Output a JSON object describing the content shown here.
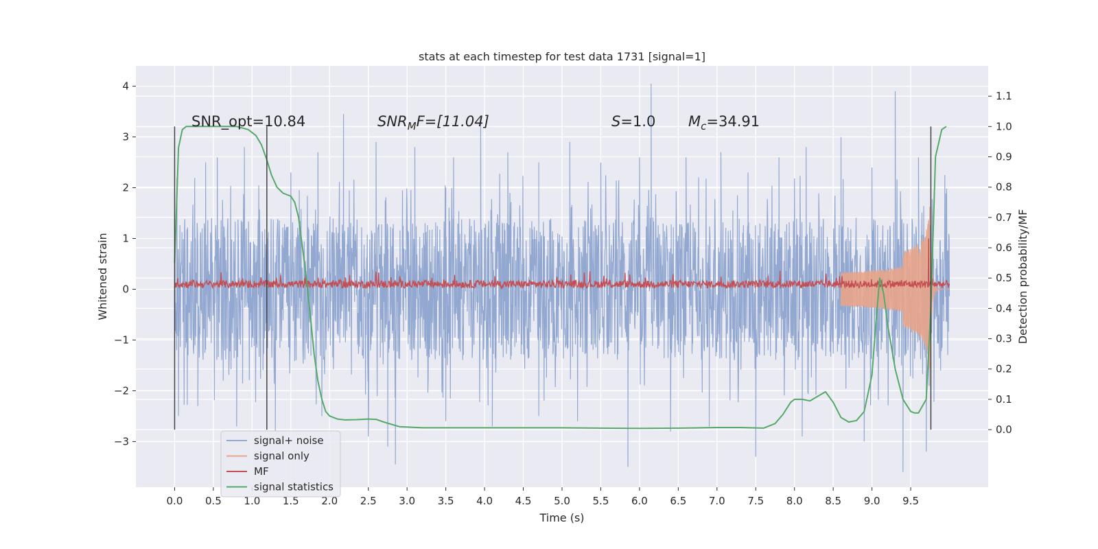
{
  "chart_data": {
    "type": "line",
    "title": "stats at each timestep for test data 1731 [signal=1]",
    "xlabel": "Time (s)",
    "ylabel": "Whitened strain",
    "y2label": "Detection probability/MF",
    "xlim": [
      -0.5,
      10.5
    ],
    "ylim": [
      -3.9,
      4.4
    ],
    "y2lim": [
      -0.19,
      1.2
    ],
    "xticks": [
      0.0,
      0.5,
      1.0,
      1.5,
      2.0,
      2.5,
      3.0,
      3.5,
      4.0,
      4.5,
      5.0,
      5.5,
      6.0,
      6.5,
      7.0,
      7.5,
      8.0,
      8.5,
      9.0,
      9.5
    ],
    "xtick_labels": [
      "0.0",
      "0.5",
      "1.0",
      "1.5",
      "2.0",
      "2.5",
      "3.0",
      "3.5",
      "4.0",
      "4.5",
      "5.0",
      "5.5",
      "6.0",
      "6.5",
      "7.0",
      "7.5",
      "8.0",
      "8.5",
      "9.0",
      "9.5"
    ],
    "yticks": [
      -3,
      -2,
      -1,
      0,
      1,
      2,
      3,
      4
    ],
    "ytick_labels": [
      "−3",
      "−2",
      "−1",
      "0",
      "1",
      "2",
      "3",
      "4"
    ],
    "y2ticks": [
      0.0,
      0.1,
      0.2,
      0.3,
      0.4,
      0.5,
      0.6,
      0.7,
      0.8,
      0.9,
      1.0,
      1.1
    ],
    "y2tick_labels": [
      "0.0",
      "0.1",
      "0.2",
      "0.3",
      "0.4",
      "0.5",
      "0.6",
      "0.7",
      "0.8",
      "0.9",
      "1.0",
      "1.1"
    ],
    "grid": true,
    "legend_position": "lower-left",
    "legend": [
      {
        "label": "signal+ noise",
        "color": "#92a8d1"
      },
      {
        "label": "signal only",
        "color": "#e8a48a"
      },
      {
        "label": "MF",
        "color": "#c44e52"
      },
      {
        "label": "signal statistics",
        "color": "#55a868"
      }
    ],
    "annotations": {
      "snr_opt": "SNR_opt=10.84",
      "snr_mf_prefix": "SNR",
      "snr_mf_sub": "M",
      "snr_mf_suffix": "F=[11.04]",
      "s_prefix": "S",
      "s_value": "=1.0",
      "mc_prefix": "M",
      "mc_sub": "c",
      "mc_value": "=34.91"
    },
    "vlines": [
      0.0,
      1.19,
      9.76
    ],
    "series": [
      {
        "name": "signal+ noise",
        "axis": "left",
        "color": "#92a8d1",
        "x_range": [
          0.0,
          10.0
        ],
        "envelope": [
          -1.4,
          1.4
        ],
        "peaks_max": [
          [
            0.03,
            2.2
          ],
          [
            0.4,
            2.5
          ],
          [
            0.55,
            2.6
          ],
          [
            0.9,
            2.8
          ],
          [
            1.5,
            2.3
          ],
          [
            1.85,
            2.7
          ],
          [
            2.18,
            3.45
          ],
          [
            2.6,
            2.9
          ],
          [
            3.1,
            2.8
          ],
          [
            3.6,
            2.6
          ],
          [
            3.95,
            3.3
          ],
          [
            4.3,
            2.7
          ],
          [
            4.7,
            2.5
          ],
          [
            5.1,
            2.9
          ],
          [
            5.5,
            2.5
          ],
          [
            6.0,
            2.6
          ],
          [
            6.15,
            4.05
          ],
          [
            6.6,
            2.6
          ],
          [
            7.05,
            2.7
          ],
          [
            7.4,
            2.3
          ],
          [
            7.8,
            2.6
          ],
          [
            8.15,
            2.8
          ],
          [
            8.6,
            3.0
          ],
          [
            9.0,
            2.4
          ],
          [
            9.3,
            3.9
          ],
          [
            9.6,
            2.6
          ],
          [
            9.94,
            2.25
          ]
        ],
        "peaks_min": [
          [
            0.05,
            -2.5
          ],
          [
            0.3,
            -2.3
          ],
          [
            0.8,
            -2.7
          ],
          [
            1.3,
            -2.8
          ],
          [
            1.9,
            -2.5
          ],
          [
            2.5,
            -2.9
          ],
          [
            2.75,
            -3.1
          ],
          [
            2.85,
            -3.45
          ],
          [
            3.5,
            -2.6
          ],
          [
            4.1,
            -2.7
          ],
          [
            4.7,
            -2.5
          ],
          [
            5.2,
            -2.6
          ],
          [
            5.85,
            -3.5
          ],
          [
            6.4,
            -2.8
          ],
          [
            6.9,
            -2.7
          ],
          [
            7.5,
            -3.3
          ],
          [
            8.1,
            -2.9
          ],
          [
            8.9,
            -3.0
          ],
          [
            9.4,
            -3.6
          ],
          [
            9.7,
            -3.2
          ]
        ]
      },
      {
        "name": "signal only",
        "axis": "left",
        "color": "#e8a48a",
        "x_range": [
          0.0,
          10.0
        ],
        "chirp_merger": 9.76,
        "chirp_peak": 2.3
      },
      {
        "name": "MF",
        "axis": "left",
        "color": "#c44e52",
        "x_range": [
          0.0,
          10.0
        ],
        "baseline": 0.1,
        "spread": 0.15,
        "spike": [
          9.73,
          1.0
        ]
      },
      {
        "name": "signal statistics",
        "axis": "right",
        "color": "#55a868",
        "x": [
          0.0,
          0.02,
          0.05,
          0.1,
          0.15,
          0.25,
          0.4,
          0.6,
          0.8,
          0.95,
          1.05,
          1.12,
          1.19,
          1.25,
          1.32,
          1.4,
          1.5,
          1.55,
          1.6,
          1.65,
          1.7,
          1.75,
          1.8,
          1.85,
          1.9,
          1.95,
          2.0,
          2.1,
          2.2,
          2.35,
          2.5,
          2.6,
          2.7,
          2.9,
          3.2,
          3.6,
          4.0,
          4.5,
          5.0,
          5.5,
          6.0,
          6.5,
          7.0,
          7.3,
          7.6,
          7.75,
          7.85,
          7.95,
          8.0,
          8.1,
          8.2,
          8.3,
          8.4,
          8.5,
          8.6,
          8.7,
          8.8,
          8.9,
          9.0,
          9.05,
          9.1,
          9.15,
          9.2,
          9.3,
          9.4,
          9.5,
          9.55,
          9.6,
          9.7,
          9.76,
          9.82,
          9.9,
          9.96
        ],
        "y": [
          0.55,
          0.7,
          0.93,
          0.99,
          1.0,
          1.0,
          1.0,
          1.0,
          1.0,
          0.99,
          0.97,
          0.94,
          0.89,
          0.84,
          0.8,
          0.78,
          0.77,
          0.75,
          0.7,
          0.6,
          0.5,
          0.38,
          0.25,
          0.16,
          0.1,
          0.06,
          0.045,
          0.035,
          0.032,
          0.033,
          0.035,
          0.034,
          0.025,
          0.01,
          0.006,
          0.006,
          0.006,
          0.006,
          0.006,
          0.005,
          0.004,
          0.005,
          0.007,
          0.007,
          0.005,
          0.02,
          0.05,
          0.09,
          0.1,
          0.1,
          0.095,
          0.11,
          0.125,
          0.09,
          0.04,
          0.025,
          0.03,
          0.06,
          0.18,
          0.35,
          0.5,
          0.45,
          0.35,
          0.2,
          0.1,
          0.06,
          0.055,
          0.055,
          0.1,
          0.4,
          0.9,
          0.99,
          1.0
        ]
      }
    ]
  }
}
